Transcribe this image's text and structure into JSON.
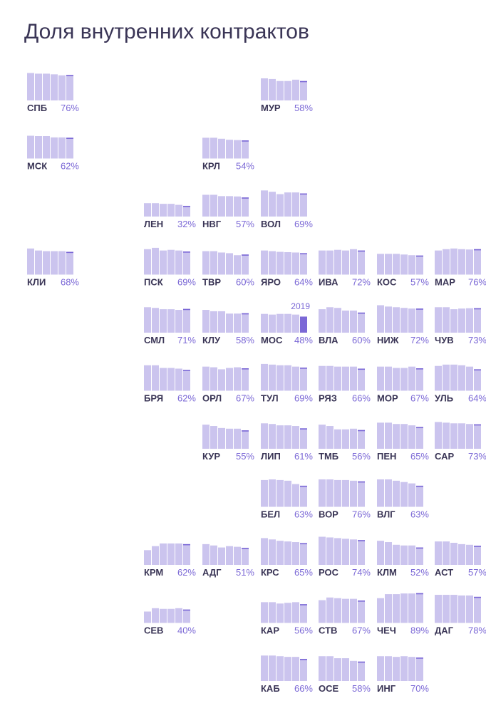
{
  "title": "Доля внутренних контрактов",
  "chart_data": {
    "type": "bar",
    "title": "Доля внутренних контрактов",
    "layout": "tile-grid small multiples",
    "highlight_label": "2019",
    "colors": {
      "bar": "#cbc4ee",
      "bar_top": "#7b68d6",
      "highlight": "#7b68d6",
      "code_text": "#3a3556",
      "pct_text": "#7b68d6"
    },
    "regions": [
      {
        "code": "СПБ",
        "pct": "76%",
        "values": [
          0.82,
          0.8,
          0.8,
          0.78,
          0.75,
          0.76
        ],
        "col": 0,
        "row": 0
      },
      {
        "code": "МУР",
        "pct": "58%",
        "values": [
          0.66,
          0.64,
          0.58,
          0.58,
          0.62,
          0.58
        ],
        "col": 4,
        "row": 0
      },
      {
        "code": "МСК",
        "pct": "62%",
        "values": [
          0.68,
          0.67,
          0.67,
          0.63,
          0.63,
          0.62
        ],
        "col": 0,
        "row": 1
      },
      {
        "code": "КРЛ",
        "pct": "54%",
        "values": [
          0.62,
          0.62,
          0.59,
          0.56,
          0.55,
          0.54
        ],
        "col": 3,
        "row": 1
      },
      {
        "code": "ЛЕН",
        "pct": "32%",
        "values": [
          0.4,
          0.4,
          0.38,
          0.38,
          0.35,
          0.32
        ],
        "col": 2,
        "row": 2
      },
      {
        "code": "НВГ",
        "pct": "57%",
        "values": [
          0.65,
          0.65,
          0.61,
          0.61,
          0.6,
          0.57
        ],
        "col": 3,
        "row": 2
      },
      {
        "code": "ВОЛ",
        "pct": "69%",
        "values": [
          0.78,
          0.74,
          0.67,
          0.72,
          0.72,
          0.69
        ],
        "col": 4,
        "row": 2
      },
      {
        "code": "КЛИ",
        "pct": "68%",
        "values": [
          0.78,
          0.72,
          0.7,
          0.7,
          0.7,
          0.68
        ],
        "col": 0,
        "row": 3
      },
      {
        "code": "ПСК",
        "pct": "69%",
        "values": [
          0.76,
          0.8,
          0.72,
          0.74,
          0.72,
          0.69
        ],
        "col": 2,
        "row": 3
      },
      {
        "code": "ТВР",
        "pct": "60%",
        "values": [
          0.7,
          0.7,
          0.66,
          0.64,
          0.58,
          0.6
        ],
        "col": 3,
        "row": 3
      },
      {
        "code": "ЯРО",
        "pct": "64%",
        "values": [
          0.72,
          0.7,
          0.68,
          0.67,
          0.66,
          0.64
        ],
        "col": 4,
        "row": 3
      },
      {
        "code": "ИВА",
        "pct": "72%",
        "values": [
          0.72,
          0.72,
          0.74,
          0.72,
          0.76,
          0.72
        ],
        "col": 5,
        "row": 3
      },
      {
        "code": "КОС",
        "pct": "57%",
        "values": [
          0.62,
          0.62,
          0.62,
          0.6,
          0.58,
          0.57
        ],
        "col": 6,
        "row": 3
      },
      {
        "code": "МАР",
        "pct": "76%",
        "values": [
          0.72,
          0.76,
          0.78,
          0.76,
          0.75,
          0.76
        ],
        "col": 7,
        "row": 3
      },
      {
        "code": "СМЛ",
        "pct": "71%",
        "values": [
          0.76,
          0.74,
          0.7,
          0.7,
          0.68,
          0.71
        ],
        "col": 2,
        "row": 4
      },
      {
        "code": "КЛУ",
        "pct": "58%",
        "values": [
          0.68,
          0.64,
          0.64,
          0.57,
          0.57,
          0.58
        ],
        "col": 3,
        "row": 4
      },
      {
        "code": "МОС",
        "pct": "48%",
        "values": [
          0.56,
          0.54,
          0.56,
          0.56,
          0.54,
          0.48
        ],
        "highlight_last": true,
        "col": 4,
        "row": 4
      },
      {
        "code": "ВЛА",
        "pct": "60%",
        "values": [
          0.7,
          0.76,
          0.74,
          0.66,
          0.66,
          0.6
        ],
        "col": 5,
        "row": 4
      },
      {
        "code": "НИЖ",
        "pct": "72%",
        "values": [
          0.82,
          0.78,
          0.76,
          0.74,
          0.72,
          0.72
        ],
        "col": 6,
        "row": 4
      },
      {
        "code": "ЧУВ",
        "pct": "73%",
        "values": [
          0.76,
          0.76,
          0.7,
          0.72,
          0.73,
          0.73
        ],
        "col": 7,
        "row": 4
      },
      {
        "code": "БРЯ",
        "pct": "62%",
        "values": [
          0.76,
          0.76,
          0.68,
          0.68,
          0.66,
          0.62
        ],
        "col": 2,
        "row": 5
      },
      {
        "code": "ОРЛ",
        "pct": "67%",
        "values": [
          0.72,
          0.7,
          0.64,
          0.68,
          0.7,
          0.67
        ],
        "col": 3,
        "row": 5
      },
      {
        "code": "ТУЛ",
        "pct": "69%",
        "values": [
          0.8,
          0.78,
          0.76,
          0.76,
          0.72,
          0.69
        ],
        "col": 4,
        "row": 5
      },
      {
        "code": "РЯЗ",
        "pct": "66%",
        "values": [
          0.74,
          0.74,
          0.72,
          0.72,
          0.72,
          0.66
        ],
        "col": 5,
        "row": 5
      },
      {
        "code": "МОР",
        "pct": "67%",
        "values": [
          0.72,
          0.72,
          0.68,
          0.68,
          0.72,
          0.67
        ],
        "col": 6,
        "row": 5
      },
      {
        "code": "УЛЬ",
        "pct": "64%",
        "values": [
          0.74,
          0.78,
          0.78,
          0.76,
          0.72,
          0.64
        ],
        "col": 7,
        "row": 5
      },
      {
        "code": "КУР",
        "pct": "55%",
        "values": [
          0.72,
          0.68,
          0.62,
          0.6,
          0.6,
          0.55
        ],
        "col": 3,
        "row": 6
      },
      {
        "code": "ЛИП",
        "pct": "61%",
        "values": [
          0.76,
          0.74,
          0.7,
          0.7,
          0.68,
          0.61
        ],
        "col": 4,
        "row": 6
      },
      {
        "code": "ТМБ",
        "pct": "56%",
        "values": [
          0.72,
          0.68,
          0.58,
          0.58,
          0.6,
          0.56
        ],
        "col": 5,
        "row": 6
      },
      {
        "code": "ПЕН",
        "pct": "65%",
        "values": [
          0.78,
          0.78,
          0.74,
          0.74,
          0.7,
          0.65
        ],
        "col": 6,
        "row": 6
      },
      {
        "code": "САР",
        "pct": "73%",
        "values": [
          0.8,
          0.78,
          0.76,
          0.76,
          0.74,
          0.73
        ],
        "col": 7,
        "row": 6
      },
      {
        "code": "БЕЛ",
        "pct": "63%",
        "values": [
          0.8,
          0.82,
          0.8,
          0.78,
          0.68,
          0.63
        ],
        "col": 4,
        "row": 7
      },
      {
        "code": "ВОР",
        "pct": "76%",
        "values": [
          0.82,
          0.82,
          0.8,
          0.8,
          0.78,
          0.76
        ],
        "col": 5,
        "row": 7
      },
      {
        "code": "ВЛГ",
        "pct": "63%",
        "values": [
          0.82,
          0.82,
          0.78,
          0.74,
          0.7,
          0.63
        ],
        "col": 6,
        "row": 7
      },
      {
        "code": "КРМ",
        "pct": "62%",
        "values": [
          0.44,
          0.56,
          0.64,
          0.64,
          0.64,
          0.62
        ],
        "col": 2,
        "row": 8
      },
      {
        "code": "АДГ",
        "pct": "51%",
        "values": [
          0.62,
          0.58,
          0.52,
          0.56,
          0.54,
          0.51
        ],
        "col": 3,
        "row": 8
      },
      {
        "code": "КРС",
        "pct": "65%",
        "values": [
          0.8,
          0.76,
          0.72,
          0.7,
          0.68,
          0.65
        ],
        "col": 4,
        "row": 8
      },
      {
        "code": "РОС",
        "pct": "74%",
        "values": [
          0.84,
          0.82,
          0.8,
          0.78,
          0.76,
          0.74
        ],
        "col": 5,
        "row": 8
      },
      {
        "code": "КЛМ",
        "pct": "52%",
        "values": [
          0.72,
          0.68,
          0.6,
          0.58,
          0.58,
          0.52
        ],
        "col": 6,
        "row": 8
      },
      {
        "code": "АСТ",
        "pct": "57%",
        "values": [
          0.7,
          0.7,
          0.66,
          0.62,
          0.6,
          0.57
        ],
        "col": 7,
        "row": 8
      },
      {
        "code": "СЕВ",
        "pct": "40%",
        "values": [
          0.34,
          0.44,
          0.42,
          0.42,
          0.44,
          0.4
        ],
        "col": 2,
        "row": 9
      },
      {
        "code": "КАР",
        "pct": "56%",
        "values": [
          0.62,
          0.62,
          0.58,
          0.6,
          0.62,
          0.56
        ],
        "col": 4,
        "row": 9
      },
      {
        "code": "СТВ",
        "pct": "67%",
        "values": [
          0.68,
          0.76,
          0.74,
          0.72,
          0.72,
          0.67
        ],
        "col": 5,
        "row": 9
      },
      {
        "code": "ЧЕЧ",
        "pct": "89%",
        "values": [
          0.74,
          0.86,
          0.86,
          0.88,
          0.88,
          0.89
        ],
        "col": 6,
        "row": 9
      },
      {
        "code": "ДАГ",
        "pct": "78%",
        "values": [
          0.84,
          0.84,
          0.84,
          0.82,
          0.82,
          0.78
        ],
        "col": 7,
        "row": 9
      },
      {
        "code": "КАБ",
        "pct": "66%",
        "values": [
          0.76,
          0.76,
          0.74,
          0.72,
          0.72,
          0.66
        ],
        "col": 4,
        "row": 10
      },
      {
        "code": "ОСЕ",
        "pct": "58%",
        "values": [
          0.74,
          0.74,
          0.68,
          0.68,
          0.6,
          0.58
        ],
        "col": 5,
        "row": 10
      },
      {
        "code": "ИНГ",
        "pct": "70%",
        "values": [
          0.74,
          0.74,
          0.72,
          0.74,
          0.72,
          0.7
        ],
        "col": 6,
        "row": 10
      }
    ]
  }
}
